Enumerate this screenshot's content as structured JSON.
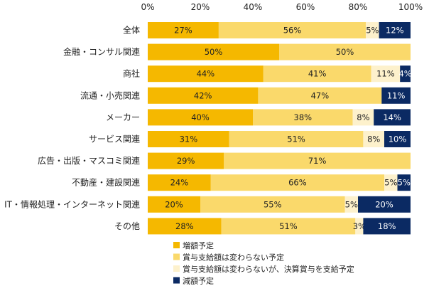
{
  "chart_data": {
    "type": "bar",
    "orientation": "horizontal",
    "stacked": true,
    "xlim": [
      0,
      100
    ],
    "x_ticks": [
      "0%",
      "20%",
      "40%",
      "60%",
      "80%",
      "100%"
    ],
    "grid": false,
    "legend_position": "bottom",
    "categories": [
      "全体",
      "金融・コンサル関連",
      "商社",
      "流通・小売関連",
      "メーカー",
      "サービス関連",
      "広告・出版・マスコミ関連",
      "不動産・建設関連",
      "IT・情報処理・インターネット関連",
      "その他"
    ],
    "series": [
      {
        "name": "増額予定",
        "color": "#F5B800",
        "label_color": "#222222",
        "values": [
          27,
          50,
          44,
          42,
          40,
          31,
          29,
          24,
          20,
          28
        ]
      },
      {
        "name": "賞与支給額は変わらない予定",
        "color": "#FAD96B",
        "label_color": "#222222",
        "values": [
          56,
          50,
          41,
          47,
          38,
          51,
          71,
          66,
          55,
          51
        ]
      },
      {
        "name": "賞与支給額は変わらないが、決算賞与を支給予定",
        "color": "#FDF1CC",
        "label_color": "#222222",
        "values": [
          5,
          0,
          11,
          0,
          8,
          8,
          0,
          5,
          5,
          3
        ]
      },
      {
        "name": "減額予定",
        "color": "#0B2A63",
        "label_color": "#ffffff",
        "values": [
          12,
          0,
          4,
          11,
          14,
          10,
          0,
          5,
          20,
          18
        ]
      }
    ]
  }
}
